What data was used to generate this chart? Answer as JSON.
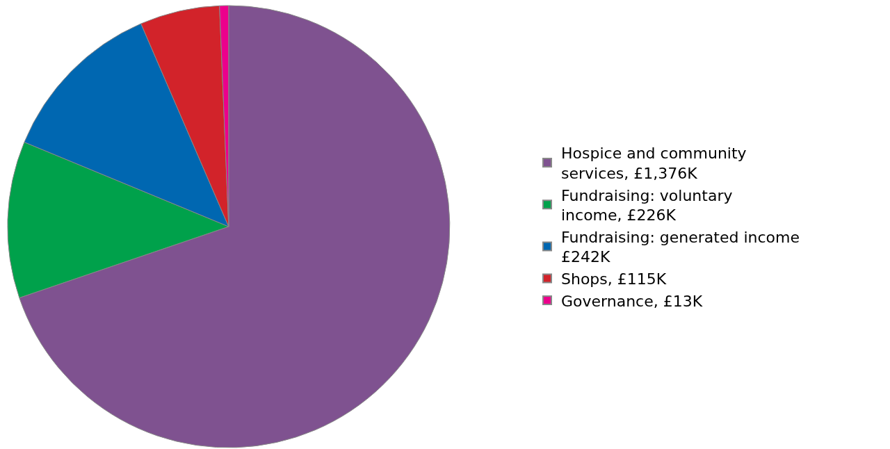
{
  "chart_data": {
    "type": "pie",
    "categories": [
      "Hospice and community services, £1,376K",
      "Fundraising: voluntary income, £226K",
      "Fundraising: generated income £242K",
      "Shops, £115K",
      "Governance, £13K"
    ],
    "values": [
      1376,
      226,
      242,
      115,
      13
    ],
    "colors": [
      "#7f5290",
      "#00a14b",
      "#0067b1",
      "#d2232a",
      "#ec008c"
    ],
    "legend": "right"
  }
}
